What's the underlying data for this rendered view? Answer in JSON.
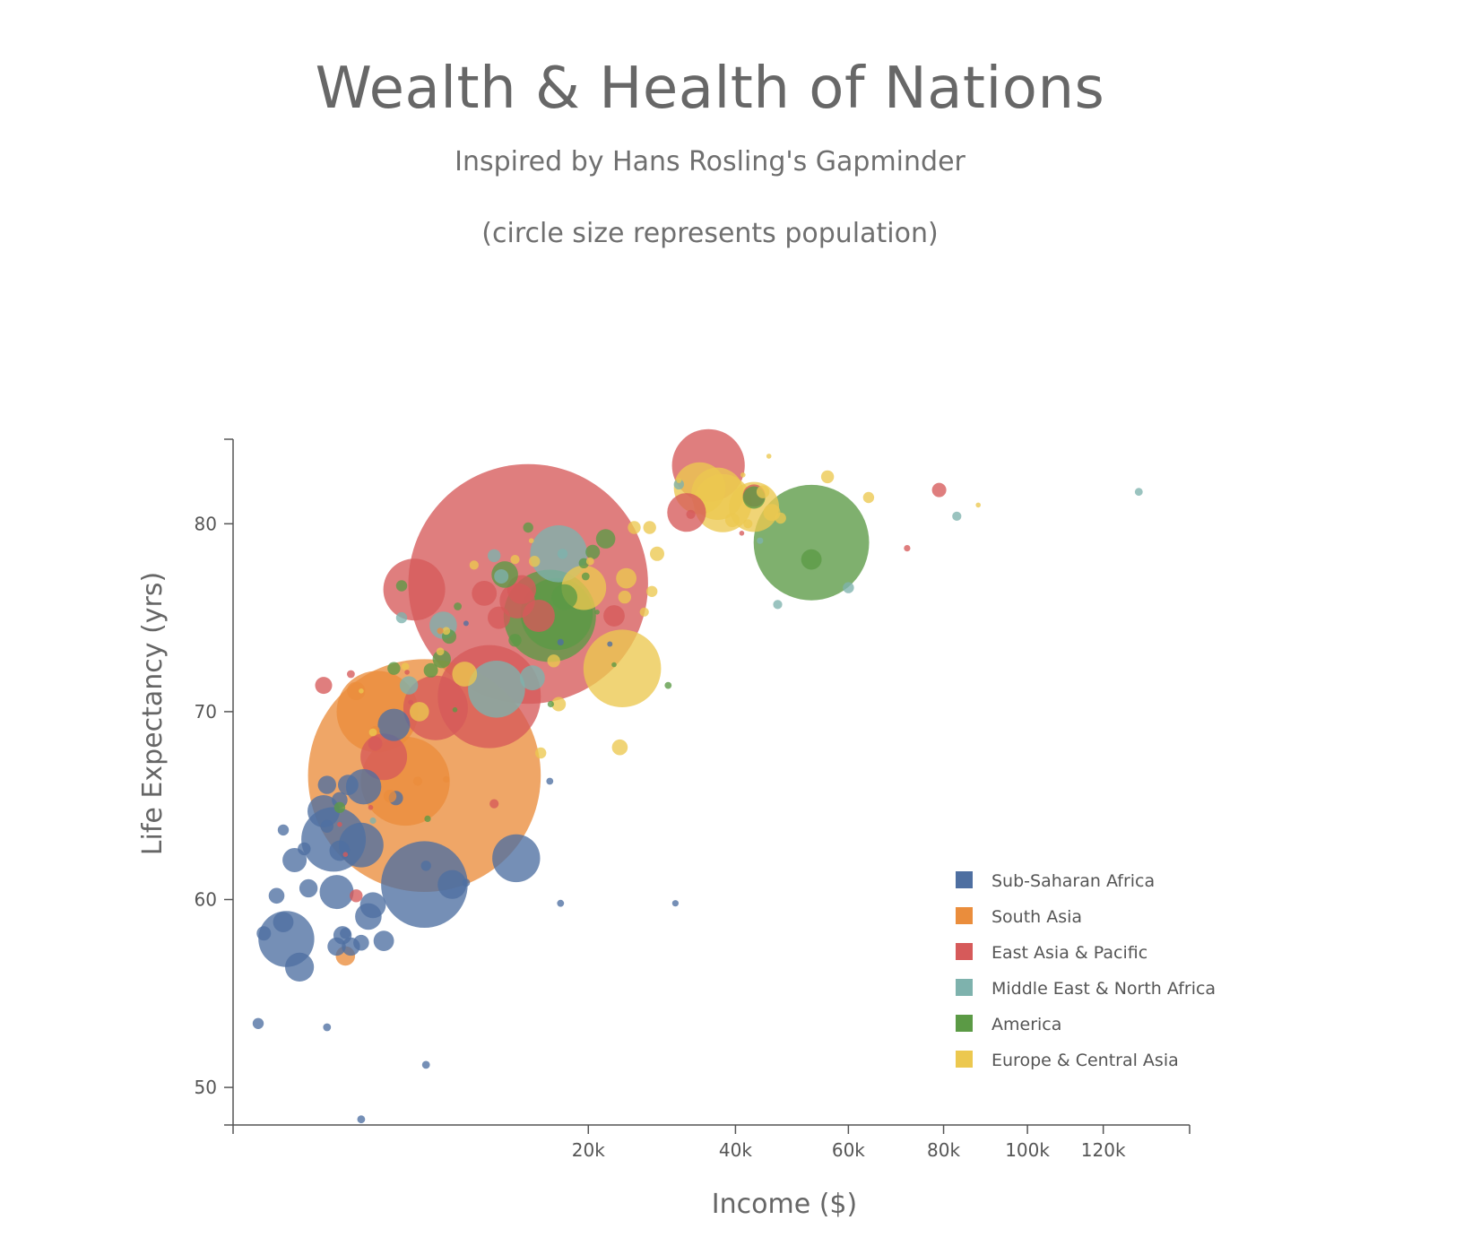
{
  "header": {
    "title": "Wealth & Health of Nations",
    "subtitle": "Inspired by Hans Rosling's Gapminder",
    "note": "(circle size represents population)"
  },
  "colors": {
    "Sub-Saharan Africa": "#4e6fa1",
    "South Asia": "#ea8d3c",
    "East Asia & Pacific": "#d65a5a",
    "Middle East & North Africa": "#7eb2ad",
    "America": "#5b9a45",
    "Europe & Central Asia": "#ecc84f"
  },
  "chart_data": {
    "type": "scatter",
    "title": "Wealth & Health of Nations",
    "subtitle": "Inspired by Hans Rosling's Gapminder",
    "xlabel": "Income ($)",
    "ylabel": "Life Expectancy (yrs)",
    "x_scale": "sqrt",
    "xlim": [
      0,
      145000
    ],
    "ylim": [
      48,
      84.5
    ],
    "x_ticks": [
      20000,
      40000,
      60000,
      80000,
      100000,
      120000
    ],
    "x_tick_labels": [
      "20k",
      "40k",
      "60k",
      "80k",
      "100k",
      "120k"
    ],
    "y_ticks": [
      50,
      60,
      70,
      80
    ],
    "y_tick_labels": [
      "50",
      "60",
      "70",
      "80"
    ],
    "legend": {
      "position": "bottom-right",
      "entries": [
        "Sub-Saharan Africa",
        "South Asia",
        "East Asia & Pacific",
        "Middle East & North Africa",
        "America",
        "Europe & Central Asia"
      ]
    },
    "size_encoding": "population",
    "points": [
      {
        "region": "East Asia & Pacific",
        "x": 13800,
        "y": 76.8,
        "pop": 1380
      },
      {
        "region": "South Asia",
        "x": 5800,
        "y": 66.6,
        "pop": 1300
      },
      {
        "region": "America",
        "x": 53000,
        "y": 79.0,
        "pop": 320
      },
      {
        "region": "East Asia & Pacific",
        "x": 10400,
        "y": 70.8,
        "pop": 255
      },
      {
        "region": "South Asia",
        "x": 4700,
        "y": 66.3,
        "pop": 190
      },
      {
        "region": "America",
        "x": 15900,
        "y": 75.1,
        "pop": 205
      },
      {
        "region": "Sub-Saharan Africa",
        "x": 5800,
        "y": 60.8,
        "pop": 180
      },
      {
        "region": "America",
        "x": 16600,
        "y": 75.2,
        "pop": 125
      },
      {
        "region": "East Asia & Pacific",
        "x": 35800,
        "y": 83.1,
        "pop": 127
      },
      {
        "region": "Europe & Central Asia",
        "x": 24000,
        "y": 72.3,
        "pop": 145
      },
      {
        "region": "South Asia",
        "x": 3300,
        "y": 70.0,
        "pop": 160
      },
      {
        "region": "Sub-Saharan Africa",
        "x": 1600,
        "y": 63.2,
        "pop": 100
      },
      {
        "region": "East Asia & Pacific",
        "x": 5200,
        "y": 76.5,
        "pop": 92
      },
      {
        "region": "East Asia & Pacific",
        "x": 6500,
        "y": 70.2,
        "pop": 100
      },
      {
        "region": "Middle East & North Africa",
        "x": 16800,
        "y": 78.4,
        "pop": 78
      },
      {
        "region": "Middle East & North Africa",
        "x": 11000,
        "y": 71.2,
        "pop": 78
      },
      {
        "region": "Europe & Central Asia",
        "x": 38000,
        "y": 81.1,
        "pop": 81
      },
      {
        "region": "Europe & Central Asia",
        "x": 34500,
        "y": 81.9,
        "pop": 64
      },
      {
        "region": "Europe & Central Asia",
        "x": 43000,
        "y": 80.9,
        "pop": 60
      },
      {
        "region": "Europe & Central Asia",
        "x": 19500,
        "y": 76.6,
        "pop": 48
      },
      {
        "region": "Sub-Saharan Africa",
        "x": 12700,
        "y": 62.2,
        "pop": 55
      },
      {
        "region": "Sub-Saharan Africa",
        "x": 2600,
        "y": 62.9,
        "pop": 48
      },
      {
        "region": "Sub-Saharan Africa",
        "x": 450,
        "y": 57.9,
        "pop": 75
      },
      {
        "region": "East Asia & Pacific",
        "x": 3600,
        "y": 67.6,
        "pop": 52
      },
      {
        "region": "East Asia & Pacific",
        "x": 32600,
        "y": 80.6,
        "pop": 36
      },
      {
        "region": "Europe & Central Asia",
        "x": 37200,
        "y": 81.6,
        "pop": 66
      },
      {
        "region": "Sub-Saharan Africa",
        "x": 2700,
        "y": 66.0,
        "pop": 30
      },
      {
        "region": "Sub-Saharan Africa",
        "x": 1700,
        "y": 60.4,
        "pop": 28
      },
      {
        "region": "Sub-Saharan Africa",
        "x": 4100,
        "y": 69.3,
        "pop": 25
      },
      {
        "region": "Sub-Saharan Africa",
        "x": 1300,
        "y": 64.7,
        "pop": 25
      },
      {
        "region": "Sub-Saharan Africa",
        "x": 3100,
        "y": 59.7,
        "pop": 16
      },
      {
        "region": "Sub-Saharan Africa",
        "x": 2900,
        "y": 59.1,
        "pop": 17
      },
      {
        "region": "Sub-Saharan Africa",
        "x": 7600,
        "y": 60.8,
        "pop": 20
      },
      {
        "region": "Sub-Saharan Africa",
        "x": 700,
        "y": 56.4,
        "pop": 20
      },
      {
        "region": "Sub-Saharan Africa",
        "x": 600,
        "y": 62.1,
        "pop": 14
      },
      {
        "region": "Sub-Saharan Africa",
        "x": 400,
        "y": 58.8,
        "pop": 10
      },
      {
        "region": "Sub-Saharan Africa",
        "x": 3600,
        "y": 57.8,
        "pop": 10
      },
      {
        "region": "Sub-Saharan Africa",
        "x": 1800,
        "y": 62.6,
        "pop": 10
      },
      {
        "region": "Sub-Saharan Africa",
        "x": 2100,
        "y": 66.1,
        "pop": 10
      },
      {
        "region": "Sub-Saharan Africa",
        "x": 1700,
        "y": 57.5,
        "pop": 8
      },
      {
        "region": "Sub-Saharan Africa",
        "x": 2200,
        "y": 57.5,
        "pop": 8
      },
      {
        "region": "Sub-Saharan Africa",
        "x": 1400,
        "y": 66.1,
        "pop": 8
      },
      {
        "region": "Sub-Saharan Africa",
        "x": 900,
        "y": 60.6,
        "pop": 8
      },
      {
        "region": "Sub-Saharan Africa",
        "x": 1900,
        "y": 58.1,
        "pop": 8
      },
      {
        "region": "Sub-Saharan Africa",
        "x": 2600,
        "y": 57.7,
        "pop": 6
      },
      {
        "region": "Sub-Saharan Africa",
        "x": 1800,
        "y": 65.3,
        "pop": 6
      },
      {
        "region": "Sub-Saharan Africa",
        "x": 300,
        "y": 60.2,
        "pop": 6
      },
      {
        "region": "Sub-Saharan Africa",
        "x": 150,
        "y": 58.2,
        "pop": 5
      },
      {
        "region": "Sub-Saharan Africa",
        "x": 800,
        "y": 62.7,
        "pop": 4
      },
      {
        "region": "Sub-Saharan Africa",
        "x": 1400,
        "y": 63.9,
        "pop": 4
      },
      {
        "region": "Sub-Saharan Africa",
        "x": 400,
        "y": 63.7,
        "pop": 3
      },
      {
        "region": "Sub-Saharan Africa",
        "x": 2000,
        "y": 58.2,
        "pop": 3
      },
      {
        "region": "Sub-Saharan Africa",
        "x": 100,
        "y": 53.4,
        "pop": 3
      },
      {
        "region": "Sub-Saharan Africa",
        "x": 1400,
        "y": 53.2,
        "pop": 1.5
      },
      {
        "region": "Sub-Saharan Africa",
        "x": 5900,
        "y": 61.8,
        "pop": 2.5
      },
      {
        "region": "Sub-Saharan Africa",
        "x": 5900,
        "y": 51.2,
        "pop": 1.5
      },
      {
        "region": "Sub-Saharan Africa",
        "x": 2600,
        "y": 48.3,
        "pop": 1.5
      },
      {
        "region": "Sub-Saharan Africa",
        "x": 8600,
        "y": 60.9,
        "pop": 1.5
      },
      {
        "region": "Sub-Saharan Africa",
        "x": 17000,
        "y": 59.8,
        "pop": 1.2
      },
      {
        "region": "Sub-Saharan Africa",
        "x": 31000,
        "y": 59.8,
        "pop": 1
      },
      {
        "region": "Sub-Saharan Africa",
        "x": 15900,
        "y": 66.3,
        "pop": 1.2
      },
      {
        "region": "Sub-Saharan Africa",
        "x": 17000,
        "y": 73.7,
        "pop": 1
      },
      {
        "region": "Sub-Saharan Africa",
        "x": 22500,
        "y": 73.6,
        "pop": 0.7
      },
      {
        "region": "Sub-Saharan Africa",
        "x": 8600,
        "y": 74.7,
        "pop": 0.7
      },
      {
        "region": "Sub-Saharan Africa",
        "x": 4200,
        "y": 65.4,
        "pop": 5
      },
      {
        "region": "South Asia",
        "x": 2000,
        "y": 57.0,
        "pop": 9
      },
      {
        "region": "South Asia",
        "x": 2400,
        "y": 71.1,
        "pop": 8
      },
      {
        "region": "South Asia",
        "x": 3200,
        "y": 69.0,
        "pop": 2
      },
      {
        "region": "South Asia",
        "x": 5400,
        "y": 66.3,
        "pop": 2
      },
      {
        "region": "South Asia",
        "x": 6800,
        "y": 74.3,
        "pop": 1
      },
      {
        "region": "South Asia",
        "x": 7200,
        "y": 66.4,
        "pop": 1
      },
      {
        "region": "South Asia",
        "x": 3900,
        "y": 65.5,
        "pop": 4
      },
      {
        "region": "East Asia & Pacific",
        "x": 1300,
        "y": 71.4,
        "pop": 7
      },
      {
        "region": "East Asia & Pacific",
        "x": 23000,
        "y": 75.1,
        "pop": 11
      },
      {
        "region": "East Asia & Pacific",
        "x": 12800,
        "y": 75.9,
        "pop": 30
      },
      {
        "region": "East Asia & Pacific",
        "x": 14800,
        "y": 75.1,
        "pop": 25
      },
      {
        "region": "East Asia & Pacific",
        "x": 43000,
        "y": 81.5,
        "pop": 12
      },
      {
        "region": "East Asia & Pacific",
        "x": 79000,
        "y": 81.8,
        "pop": 5
      },
      {
        "region": "East Asia & Pacific",
        "x": 3200,
        "y": 68.3,
        "pop": 5
      },
      {
        "region": "East Asia & Pacific",
        "x": 2400,
        "y": 60.2,
        "pop": 4
      },
      {
        "region": "East Asia & Pacific",
        "x": 13200,
        "y": 76.5,
        "pop": 20
      },
      {
        "region": "East Asia & Pacific",
        "x": 11200,
        "y": 75.0,
        "pop": 12
      },
      {
        "region": "East Asia & Pacific",
        "x": 10000,
        "y": 76.3,
        "pop": 15
      },
      {
        "region": "East Asia & Pacific",
        "x": 10800,
        "y": 65.1,
        "pop": 2
      },
      {
        "region": "East Asia & Pacific",
        "x": 2200,
        "y": 72.0,
        "pop": 1.5
      },
      {
        "region": "East Asia & Pacific",
        "x": 33200,
        "y": 80.5,
        "pop": 2
      },
      {
        "region": "East Asia & Pacific",
        "x": 72000,
        "y": 78.7,
        "pop": 1
      },
      {
        "region": "East Asia & Pacific",
        "x": 41000,
        "y": 79.5,
        "pop": 0.6
      },
      {
        "region": "East Asia & Pacific",
        "x": 3000,
        "y": 64.9,
        "pop": 0.6
      },
      {
        "region": "East Asia & Pacific",
        "x": 4800,
        "y": 72.1,
        "pop": 0.6
      },
      {
        "region": "East Asia & Pacific",
        "x": 1800,
        "y": 64.0,
        "pop": 0.6
      },
      {
        "region": "East Asia & Pacific",
        "x": 2000,
        "y": 62.4,
        "pop": 0.6
      },
      {
        "region": "East Asia & Pacific",
        "x": 5000,
        "y": 70.5,
        "pop": 0.6
      },
      {
        "region": "Middle East & North Africa",
        "x": 7000,
        "y": 74.6,
        "pop": 18
      },
      {
        "region": "Middle East & North Africa",
        "x": 14200,
        "y": 71.8,
        "pop": 15
      },
      {
        "region": "Middle East & North Africa",
        "x": 4900,
        "y": 71.4,
        "pop": 8
      },
      {
        "region": "Middle East & North Africa",
        "x": 4500,
        "y": 75.0,
        "pop": 3
      },
      {
        "region": "Middle East & North Africa",
        "x": 10800,
        "y": 78.3,
        "pop": 4
      },
      {
        "region": "Middle East & North Africa",
        "x": 11400,
        "y": 77.2,
        "pop": 5
      },
      {
        "region": "Middle East & North Africa",
        "x": 60000,
        "y": 76.6,
        "pop": 3
      },
      {
        "region": "Middle East & North Africa",
        "x": 47000,
        "y": 75.7,
        "pop": 2
      },
      {
        "region": "Middle East & North Africa",
        "x": 83000,
        "y": 80.4,
        "pop": 2
      },
      {
        "region": "Middle East & North Africa",
        "x": 130000,
        "y": 81.7,
        "pop": 1.5
      },
      {
        "region": "Middle East & North Africa",
        "x": 31500,
        "y": 82.1,
        "pop": 2.5
      },
      {
        "region": "Middle East & North Africa",
        "x": 44000,
        "y": 79.1,
        "pop": 1
      },
      {
        "region": "Middle East & North Africa",
        "x": 17200,
        "y": 78.4,
        "pop": 2.5
      },
      {
        "region": "Middle East & North Africa",
        "x": 3100,
        "y": 64.2,
        "pop": 1
      },
      {
        "region": "America",
        "x": 53000,
        "y": 78.1,
        "pop": 10
      },
      {
        "region": "America",
        "x": 22000,
        "y": 79.2,
        "pop": 9
      },
      {
        "region": "America",
        "x": 20500,
        "y": 78.5,
        "pop": 5
      },
      {
        "region": "America",
        "x": 17400,
        "y": 76.1,
        "pop": 16
      },
      {
        "region": "America",
        "x": 11700,
        "y": 77.3,
        "pop": 17
      },
      {
        "region": "America",
        "x": 6900,
        "y": 72.8,
        "pop": 8
      },
      {
        "region": "America",
        "x": 6200,
        "y": 72.2,
        "pop": 5
      },
      {
        "region": "America",
        "x": 7400,
        "y": 74.0,
        "pop": 5
      },
      {
        "region": "America",
        "x": 12600,
        "y": 73.8,
        "pop": 4
      },
      {
        "region": "America",
        "x": 43000,
        "y": 81.4,
        "pop": 12
      },
      {
        "region": "America",
        "x": 13800,
        "y": 79.8,
        "pop": 2.5
      },
      {
        "region": "America",
        "x": 4100,
        "y": 72.3,
        "pop": 4
      },
      {
        "region": "America",
        "x": 1800,
        "y": 64.9,
        "pop": 3
      },
      {
        "region": "America",
        "x": 19500,
        "y": 77.9,
        "pop": 2.5
      },
      {
        "region": "America",
        "x": 4500,
        "y": 76.7,
        "pop": 3
      },
      {
        "region": "America",
        "x": 19700,
        "y": 77.2,
        "pop": 1.5
      },
      {
        "region": "America",
        "x": 8000,
        "y": 75.6,
        "pop": 1.5
      },
      {
        "region": "America",
        "x": 30000,
        "y": 71.4,
        "pop": 1.2
      },
      {
        "region": "America",
        "x": 16000,
        "y": 70.4,
        "pop": 1
      },
      {
        "region": "America",
        "x": 23000,
        "y": 72.5,
        "pop": 0.6
      },
      {
        "region": "America",
        "x": 6000,
        "y": 64.3,
        "pop": 1
      },
      {
        "region": "America",
        "x": 7800,
        "y": 70.1,
        "pop": 0.6
      },
      {
        "region": "America",
        "x": 21000,
        "y": 75.3,
        "pop": 0.6
      },
      {
        "region": "Europe & Central Asia",
        "x": 5500,
        "y": 70.0,
        "pop": 9
      },
      {
        "region": "Europe & Central Asia",
        "x": 8500,
        "y": 72.0,
        "pop": 15
      },
      {
        "region": "Europe & Central Asia",
        "x": 24500,
        "y": 77.1,
        "pop": 10
      },
      {
        "region": "Europe & Central Asia",
        "x": 28500,
        "y": 78.4,
        "pop": 5
      },
      {
        "region": "Europe & Central Asia",
        "x": 25500,
        "y": 79.8,
        "pop": 4
      },
      {
        "region": "Europe & Central Asia",
        "x": 27500,
        "y": 79.8,
        "pop": 4
      },
      {
        "region": "Europe & Central Asia",
        "x": 24300,
        "y": 76.1,
        "pop": 4
      },
      {
        "region": "Europe & Central Asia",
        "x": 23700,
        "y": 68.1,
        "pop": 6
      },
      {
        "region": "Europe & Central Asia",
        "x": 16800,
        "y": 70.4,
        "pop": 5
      },
      {
        "region": "Europe & Central Asia",
        "x": 16300,
        "y": 72.7,
        "pop": 4
      },
      {
        "region": "Europe & Central Asia",
        "x": 15000,
        "y": 67.8,
        "pop": 3
      },
      {
        "region": "Europe & Central Asia",
        "x": 27800,
        "y": 76.4,
        "pop": 3
      },
      {
        "region": "Europe & Central Asia",
        "x": 39500,
        "y": 80.2,
        "pop": 5
      },
      {
        "region": "Europe & Central Asia",
        "x": 46000,
        "y": 80.6,
        "pop": 7
      },
      {
        "region": "Europe & Central Asia",
        "x": 44500,
        "y": 81.7,
        "pop": 4
      },
      {
        "region": "Europe & Central Asia",
        "x": 56000,
        "y": 82.5,
        "pop": 4
      },
      {
        "region": "Europe & Central Asia",
        "x": 64000,
        "y": 81.4,
        "pop": 3
      },
      {
        "region": "Europe & Central Asia",
        "x": 47500,
        "y": 80.3,
        "pop": 3
      },
      {
        "region": "Europe & Central Asia",
        "x": 42000,
        "y": 80.0,
        "pop": 2
      },
      {
        "region": "Europe & Central Asia",
        "x": 26800,
        "y": 75.3,
        "pop": 2
      },
      {
        "region": "Europe & Central Asia",
        "x": 9200,
        "y": 77.8,
        "pop": 2
      },
      {
        "region": "Europe & Central Asia",
        "x": 12600,
        "y": 78.1,
        "pop": 2
      },
      {
        "region": "Europe & Central Asia",
        "x": 14400,
        "y": 78.0,
        "pop": 3
      },
      {
        "region": "Europe & Central Asia",
        "x": 6800,
        "y": 73.2,
        "pop": 1.5
      },
      {
        "region": "Europe & Central Asia",
        "x": 3100,
        "y": 68.9,
        "pop": 1.5
      },
      {
        "region": "Europe & Central Asia",
        "x": 4700,
        "y": 72.4,
        "pop": 1.5
      },
      {
        "region": "Europe & Central Asia",
        "x": 7200,
        "y": 74.3,
        "pop": 1.5
      },
      {
        "region": "Europe & Central Asia",
        "x": 20200,
        "y": 78.0,
        "pop": 1.5
      },
      {
        "region": "Europe & Central Asia",
        "x": 31500,
        "y": 82.3,
        "pop": 0.6
      },
      {
        "region": "Europe & Central Asia",
        "x": 88000,
        "y": 81.0,
        "pop": 0.6
      },
      {
        "region": "Europe & Central Asia",
        "x": 45500,
        "y": 83.6,
        "pop": 0.4
      },
      {
        "region": "Europe & Central Asia",
        "x": 41200,
        "y": 82.6,
        "pop": 0.4
      },
      {
        "region": "Europe & Central Asia",
        "x": 14100,
        "y": 79.1,
        "pop": 0.6
      },
      {
        "region": "Europe & Central Asia",
        "x": 2600,
        "y": 71.1,
        "pop": 0.6
      }
    ]
  }
}
